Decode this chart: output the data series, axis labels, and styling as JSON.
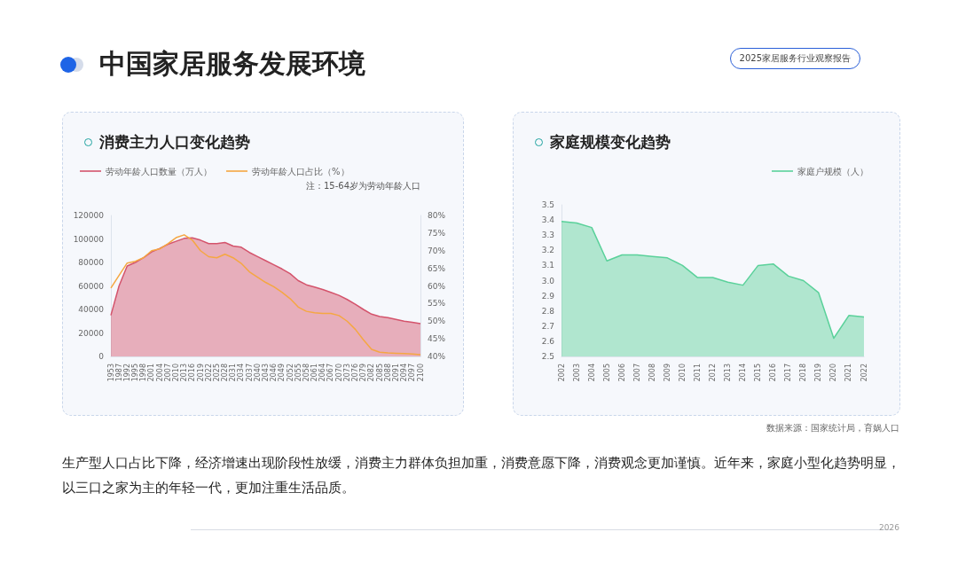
{
  "chart_data": [
    {
      "type": "area",
      "title": "消费主力人口变化趋势",
      "categories": [
        "1953",
        "1987",
        "1992",
        "1995",
        "1998",
        "2001",
        "2004",
        "2007",
        "2010",
        "2013",
        "2016",
        "2019",
        "2022",
        "2025",
        "2028",
        "2031",
        "2034",
        "2037",
        "2040",
        "2043",
        "2046",
        "2049",
        "2052",
        "2055",
        "2058",
        "2061",
        "2064",
        "2067",
        "2070",
        "2073",
        "2076",
        "2079",
        "2082",
        "2085",
        "2088",
        "2091",
        "2094",
        "2097",
        "2100"
      ],
      "series": [
        {
          "name": "劳动年龄人口数量（万人）",
          "color": "#d4546c",
          "values": [
            35000,
            60000,
            77000,
            80000,
            84000,
            89000,
            92000,
            95500,
            98000,
            100500,
            101000,
            99000,
            96000,
            96000,
            97000,
            94000,
            93000,
            88500,
            85000,
            81500,
            78000,
            74500,
            70500,
            64500,
            61000,
            59000,
            57000,
            54500,
            52000,
            48500,
            44500,
            40000,
            36000,
            34000,
            33000,
            31500,
            30000,
            29000,
            28000
          ]
        },
        {
          "name": "劳动年龄人口占比（%）",
          "type": "line",
          "axis": "y2",
          "color": "#f5a742",
          "values": [
            59.4,
            63,
            66.5,
            67,
            68,
            70,
            70.5,
            72,
            73.7,
            74.5,
            73,
            70,
            68.3,
            68,
            69,
            68,
            66.4,
            64,
            62.5,
            61,
            59.8,
            58.2,
            56.4,
            54,
            52.8,
            52.4,
            52.2,
            52.2,
            51.6,
            50,
            47.7,
            44.7,
            42,
            41.2,
            41,
            40.9,
            40.8,
            40.7,
            40.5
          ]
        }
      ],
      "ylim": [
        0,
        120000
      ],
      "yticks": [
        0,
        20000,
        40000,
        60000,
        80000,
        100000,
        120000
      ],
      "y2lim": [
        40,
        80
      ],
      "y2ticks": [
        {
          "value": 40,
          "label": "40%"
        },
        {
          "value": 45,
          "label": "45%"
        },
        {
          "value": 50,
          "label": "50%"
        },
        {
          "value": 55,
          "label": "55%"
        },
        {
          "value": 60,
          "label": "60%"
        },
        {
          "value": 65,
          "label": "65%"
        },
        {
          "value": 70,
          "label": "70%"
        },
        {
          "value": 75,
          "label": "75%"
        },
        {
          "value": 80,
          "label": "80%"
        }
      ],
      "grid": false,
      "legend": "top left",
      "marker": "none",
      "annotations": [
        "注：15-64岁为劳动年龄人口"
      ]
    },
    {
      "type": "area",
      "title": "家庭规模变化趋势",
      "categories": [
        "2002",
        "2003",
        "2004",
        "2005",
        "2006",
        "2007",
        "2008",
        "2009",
        "2010",
        "2011",
        "2012",
        "2013",
        "2014",
        "2015",
        "2016",
        "2017",
        "2018",
        "2019",
        "2020",
        "2021",
        "2022"
      ],
      "series": [
        {
          "name": "家庭户规模（人）",
          "color": "#5ad19a",
          "values": [
            3.39,
            3.38,
            3.35,
            3.13,
            3.17,
            3.17,
            3.16,
            3.15,
            3.1,
            3.02,
            3.02,
            2.99,
            2.97,
            3.1,
            3.11,
            3.03,
            3.0,
            2.92,
            2.62,
            2.77,
            2.76
          ]
        }
      ],
      "ylim": [
        2.5,
        3.5
      ],
      "yticks": [
        2.5,
        2.6,
        2.7,
        2.8,
        2.9,
        {
          "value": 3,
          "label": "3.0"
        },
        3.1,
        3.2,
        3.3,
        3.4,
        3.5
      ],
      "grid": false,
      "legend": "top right",
      "marker": "none",
      "annotations": [
        "数据来源：国家统计局，育娲人口"
      ]
    },
    {
      "type": "other",
      "title": "中国家居服务发展环境",
      "annotations": [
        "2025家居服务行业观察报告",
        "生产型人口占比下降，经济增速出现阶段性放缓，消费主力群体负担加重，消费意愿下降，消费观念更加谨慎。近年来，家庭小型化趋势明显，以三口之家为主的年轻一代，更加注重生活品质。",
        "2026"
      ]
    }
  ]
}
